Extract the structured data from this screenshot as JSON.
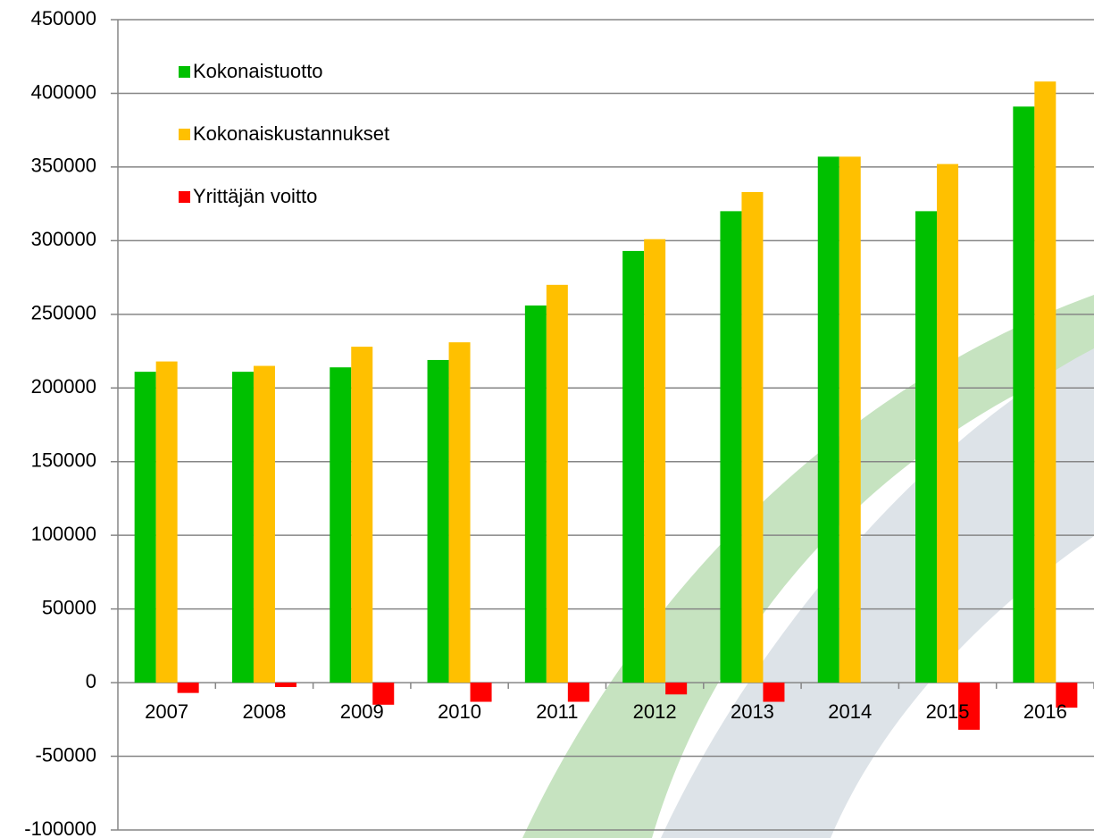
{
  "chart_data": {
    "type": "bar",
    "categories": [
      "2007",
      "2008",
      "2009",
      "2010",
      "2011",
      "2012",
      "2013",
      "2014",
      "2015",
      "2016"
    ],
    "series": [
      {
        "name": "Kokonaistuotto",
        "color": "#00c000",
        "values": [
          211000,
          211000,
          214000,
          219000,
          256000,
          293000,
          320000,
          357000,
          320000,
          391000
        ]
      },
      {
        "name": "Kokonaiskustannukset",
        "color": "#ffc000",
        "values": [
          218000,
          215000,
          228000,
          231000,
          270000,
          301000,
          333000,
          357000,
          352000,
          408000
        ]
      },
      {
        "name": "Yrittäjän voitto",
        "color": "#ff0000",
        "values": [
          -7000,
          -3000,
          -15000,
          -13000,
          -13000,
          -8000,
          -13000,
          0,
          -32000,
          -17000
        ]
      }
    ],
    "ylim": [
      -100000,
      450000
    ],
    "yticks": [
      -100000,
      -50000,
      0,
      50000,
      100000,
      150000,
      200000,
      250000,
      300000,
      350000,
      400000,
      450000
    ],
    "grid": true,
    "legend": "top-left"
  }
}
